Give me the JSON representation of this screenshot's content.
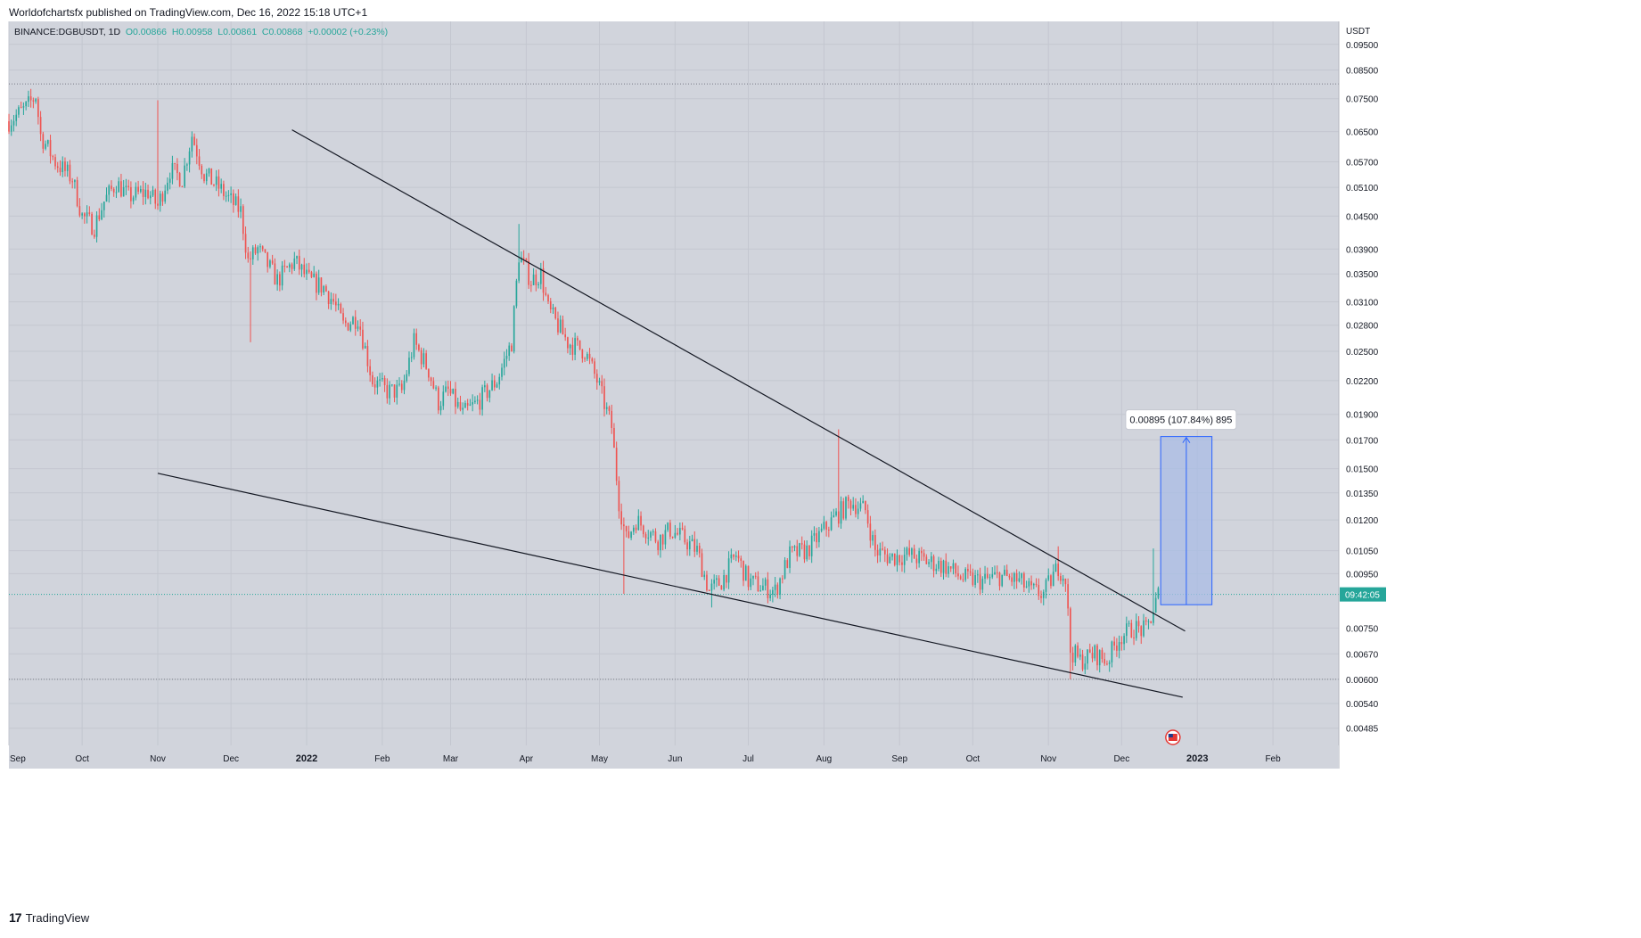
{
  "header": {
    "publish_line": "Worldofchartsfx published on TradingView.com, Dec 16, 2022 15:18 UTC+1"
  },
  "footer": {
    "brand": "TradingView",
    "logo_glyph": "17"
  },
  "colors": {
    "chart_bg": "#d1d4dc",
    "up": "#26a69a",
    "down": "#ef5350",
    "line": "#131722",
    "measure_fill": "#a9bce6",
    "measure_line": "#2962ff",
    "price_tag": "#26a69a"
  },
  "chart_data": {
    "type": "candlestick",
    "symbol_line": {
      "symbol": "BINANCE:DGBUSDT, 1D",
      "o": "O0.00866",
      "h": "H0.00958",
      "l": "L0.00861",
      "c": "C0.00868",
      "change": "+0.00002 (+0.23%)"
    },
    "yaxis_unit": "USDT",
    "yscale": "log",
    "ylim": [
      0.0045,
      0.105
    ],
    "yticks": [
      "0.09500",
      "0.08500",
      "0.07500",
      "0.06500",
      "0.05700",
      "0.05100",
      "0.04500",
      "0.03900",
      "0.03500",
      "0.03100",
      "0.02800",
      "0.02500",
      "0.02200",
      "0.01900",
      "0.01700",
      "0.01500",
      "0.01350",
      "0.01200",
      "0.01050",
      "0.00950",
      "0.00750",
      "0.00670",
      "0.00600",
      "0.00540",
      "0.00485"
    ],
    "xticks": [
      "Sep",
      "Oct",
      "Nov",
      "Dec",
      "2022",
      "Feb",
      "Mar",
      "Apr",
      "May",
      "Jun",
      "Jul",
      "Aug",
      "Sep",
      "Oct",
      "Nov",
      "Dec",
      "2023",
      "Feb"
    ],
    "bold_xticks": [
      "2022",
      "2023"
    ],
    "xlim": [
      "2021-09-01",
      "2023-02-28"
    ],
    "price_path": [
      [
        "2021-09-01",
        0.068
      ],
      [
        "2021-09-08",
        0.072
      ],
      [
        "2021-09-12",
        0.076
      ],
      [
        "2021-09-14",
        0.064
      ],
      [
        "2021-09-20",
        0.057
      ],
      [
        "2021-09-27",
        0.053
      ],
      [
        "2021-10-01",
        0.045
      ],
      [
        "2021-10-06",
        0.043
      ],
      [
        "2021-10-10",
        0.048
      ],
      [
        "2021-10-15",
        0.052
      ],
      [
        "2021-10-20",
        0.049
      ],
      [
        "2021-10-28",
        0.05
      ],
      [
        "2021-11-01",
        0.047
      ],
      [
        "2021-11-06",
        0.055
      ],
      [
        "2021-11-11",
        0.053
      ],
      [
        "2021-11-15",
        0.064
      ],
      [
        "2021-11-20",
        0.054
      ],
      [
        "2021-11-26",
        0.051
      ],
      [
        "2021-12-01",
        0.048
      ],
      [
        "2021-12-05",
        0.046
      ],
      [
        "2021-12-08",
        0.037
      ],
      [
        "2021-12-12",
        0.039
      ],
      [
        "2021-12-20",
        0.034
      ],
      [
        "2021-12-27",
        0.037
      ],
      [
        "2022-01-02",
        0.034
      ],
      [
        "2022-01-08",
        0.033
      ],
      [
        "2022-01-12",
        0.031
      ],
      [
        "2022-01-16",
        0.028
      ],
      [
        "2022-01-22",
        0.029
      ],
      [
        "2022-01-28",
        0.022
      ],
      [
        "2022-02-03",
        0.021
      ],
      [
        "2022-02-09",
        0.021
      ],
      [
        "2022-02-14",
        0.026
      ],
      [
        "2022-02-20",
        0.023
      ],
      [
        "2022-02-24",
        0.02
      ],
      [
        "2022-02-28",
        0.021
      ],
      [
        "2022-03-06",
        0.019
      ],
      [
        "2022-03-12",
        0.02
      ],
      [
        "2022-03-20",
        0.022
      ],
      [
        "2022-03-26",
        0.026
      ],
      [
        "2022-03-29",
        0.038
      ],
      [
        "2022-04-03",
        0.034
      ],
      [
        "2022-04-07",
        0.035
      ],
      [
        "2022-04-10",
        0.03
      ],
      [
        "2022-04-18",
        0.026
      ],
      [
        "2022-04-25",
        0.025
      ],
      [
        "2022-04-30",
        0.022
      ],
      [
        "2022-05-06",
        0.018
      ],
      [
        "2022-05-09",
        0.013
      ],
      [
        "2022-05-12",
        0.011
      ],
      [
        "2022-05-16",
        0.012
      ],
      [
        "2022-05-25",
        0.011
      ],
      [
        "2022-05-30",
        0.0115
      ],
      [
        "2022-06-05",
        0.011
      ],
      [
        "2022-06-10",
        0.0105
      ],
      [
        "2022-06-15",
        0.0088
      ],
      [
        "2022-06-20",
        0.0092
      ],
      [
        "2022-06-26",
        0.0103
      ],
      [
        "2022-07-01",
        0.0092
      ],
      [
        "2022-07-06",
        0.009
      ],
      [
        "2022-07-12",
        0.0088
      ],
      [
        "2022-07-18",
        0.0103
      ],
      [
        "2022-07-25",
        0.0105
      ],
      [
        "2022-08-01",
        0.0115
      ],
      [
        "2022-08-06",
        0.0122
      ],
      [
        "2022-08-12",
        0.013
      ],
      [
        "2022-08-18",
        0.0125
      ],
      [
        "2022-08-22",
        0.0105
      ],
      [
        "2022-08-28",
        0.0102
      ],
      [
        "2022-09-05",
        0.0103
      ],
      [
        "2022-09-13",
        0.01
      ],
      [
        "2022-09-20",
        0.0098
      ],
      [
        "2022-09-27",
        0.0093
      ],
      [
        "2022-10-05",
        0.0092
      ],
      [
        "2022-10-12",
        0.0094
      ],
      [
        "2022-10-20",
        0.0092
      ],
      [
        "2022-10-25",
        0.0088
      ],
      [
        "2022-10-30",
        0.0087
      ],
      [
        "2022-11-05",
        0.0098
      ],
      [
        "2022-11-08",
        0.0093
      ],
      [
        "2022-11-10",
        0.0068
      ],
      [
        "2022-11-14",
        0.0065
      ],
      [
        "2022-11-20",
        0.0067
      ],
      [
        "2022-11-25",
        0.0065
      ],
      [
        "2022-11-30",
        0.0072
      ],
      [
        "2022-12-06",
        0.0075
      ],
      [
        "2022-12-11",
        0.0074
      ],
      [
        "2022-12-14",
        0.0081
      ],
      [
        "2022-12-16",
        0.0087
      ]
    ],
    "trendlines": [
      {
        "from": [
          "2021-12-26",
          0.0655
        ],
        "to": [
          "2022-12-27",
          0.0074
        ]
      },
      {
        "from": [
          "2021-11-01",
          0.0147
        ],
        "to": [
          "2022-12-26",
          0.00555
        ]
      }
    ],
    "spikes": [
      {
        "date": "2022-03-29",
        "high": 0.0435
      },
      {
        "date": "2022-08-07",
        "high": 0.0178
      },
      {
        "date": "2022-11-05",
        "high": 0.0107
      },
      {
        "date": "2021-11-01",
        "high": 0.0745
      },
      {
        "date": "2022-12-14",
        "high": 0.0106
      },
      {
        "date": "2021-12-09",
        "low": 0.026
      },
      {
        "date": "2022-05-11",
        "low": 0.0087
      },
      {
        "date": "2022-11-10",
        "low": 0.006
      },
      {
        "date": "2022-06-16",
        "low": 0.0082
      }
    ],
    "hlines": [
      {
        "y": 0.08,
        "style": "dotted",
        "color": "#787b86"
      },
      {
        "y": 0.006,
        "style": "dotted",
        "color": "#787b86"
      },
      {
        "y": 0.00868,
        "style": "dotted",
        "color": "#26a69a"
      }
    ],
    "measure": {
      "x_start": "2022-12-17",
      "x_end": "2023-01-07",
      "y_bottom": 0.0083,
      "y_top": 0.01725,
      "label": "0.00895 (107.84%) 895"
    },
    "price_tag": {
      "value": 0.00868,
      "label": "09:42:05"
    }
  }
}
